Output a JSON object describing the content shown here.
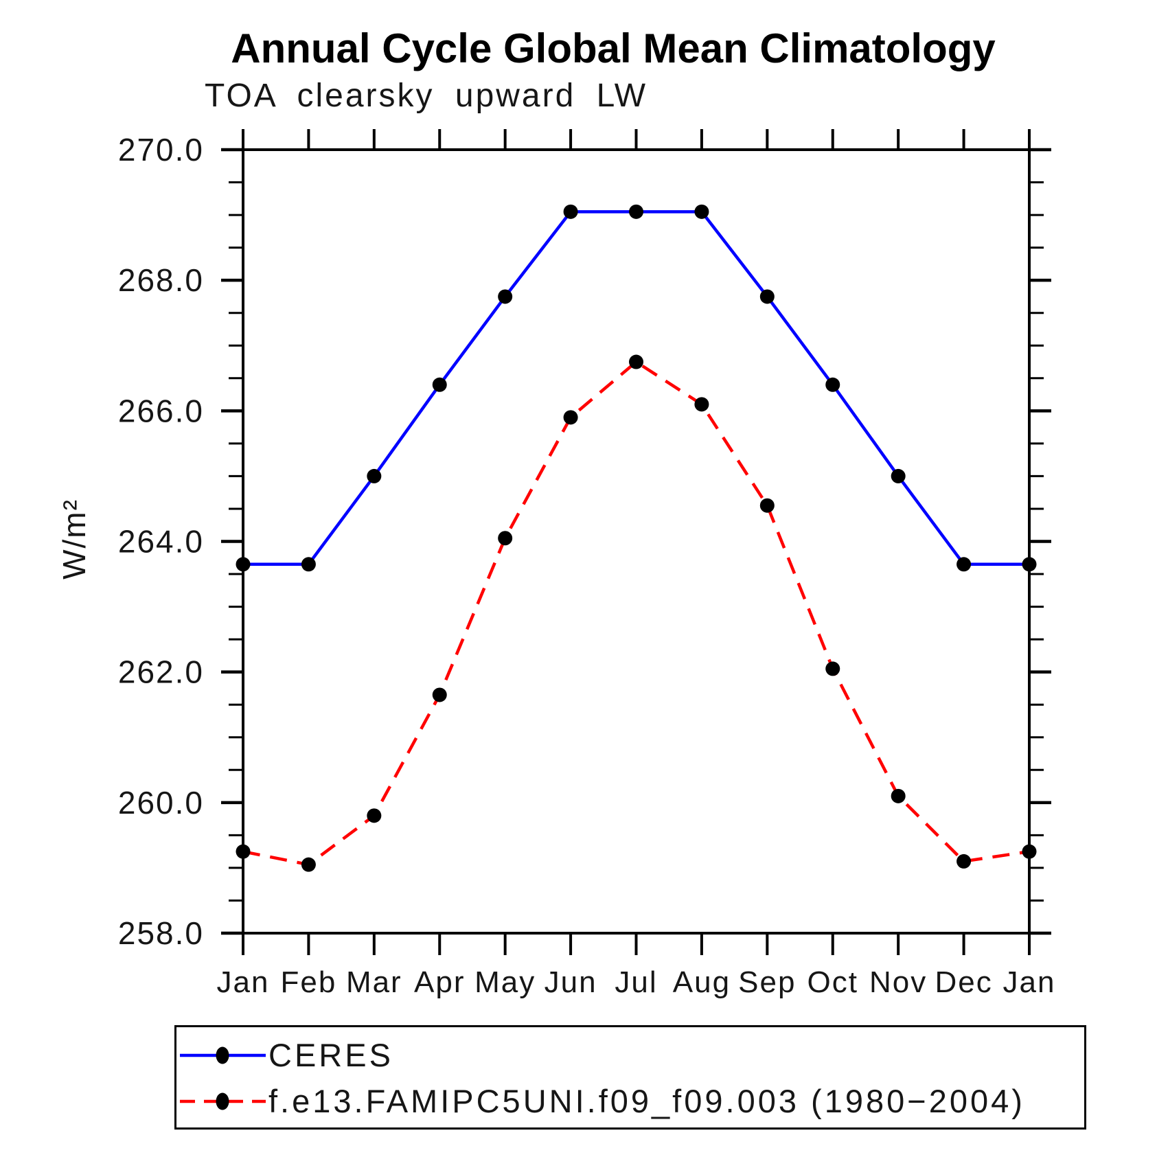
{
  "title": "Annual Cycle Global Mean Climatology",
  "subtitle": "TOA clearsky upward LW",
  "chart_data": {
    "type": "line",
    "x_categories": [
      "Jan",
      "Feb",
      "Mar",
      "Apr",
      "May",
      "Jun",
      "Jul",
      "Aug",
      "Sep",
      "Oct",
      "Nov",
      "Dec",
      "Jan"
    ],
    "ylabel": "W/m²",
    "ylim": [
      258.0,
      270.0
    ],
    "ytick_major_interval": 2.0,
    "ytick_minor_interval": 0.5,
    "ytick_labels": [
      "258.0",
      "260.0",
      "262.0",
      "264.0",
      "266.0",
      "268.0",
      "270.0"
    ],
    "grid": false,
    "legend_position": "bottom-left-box",
    "series": [
      {
        "name": "CERES",
        "color": "#0000ff",
        "style": "solid",
        "marker": "filled-circle",
        "marker_color": "#000000",
        "values": [
          263.65,
          263.65,
          265.0,
          266.4,
          267.75,
          269.05,
          269.05,
          269.05,
          267.75,
          266.4,
          265.0,
          263.65,
          263.65
        ]
      },
      {
        "name": "f.e13.FAMIPC5UNI.f09_f09.003 (1980−2004)",
        "color": "#ff0000",
        "style": "dashed",
        "marker": "filled-circle",
        "marker_color": "#000000",
        "values": [
          259.25,
          259.05,
          259.8,
          261.65,
          264.05,
          265.9,
          266.75,
          266.1,
          264.55,
          262.05,
          260.1,
          259.1,
          259.25
        ]
      }
    ]
  }
}
